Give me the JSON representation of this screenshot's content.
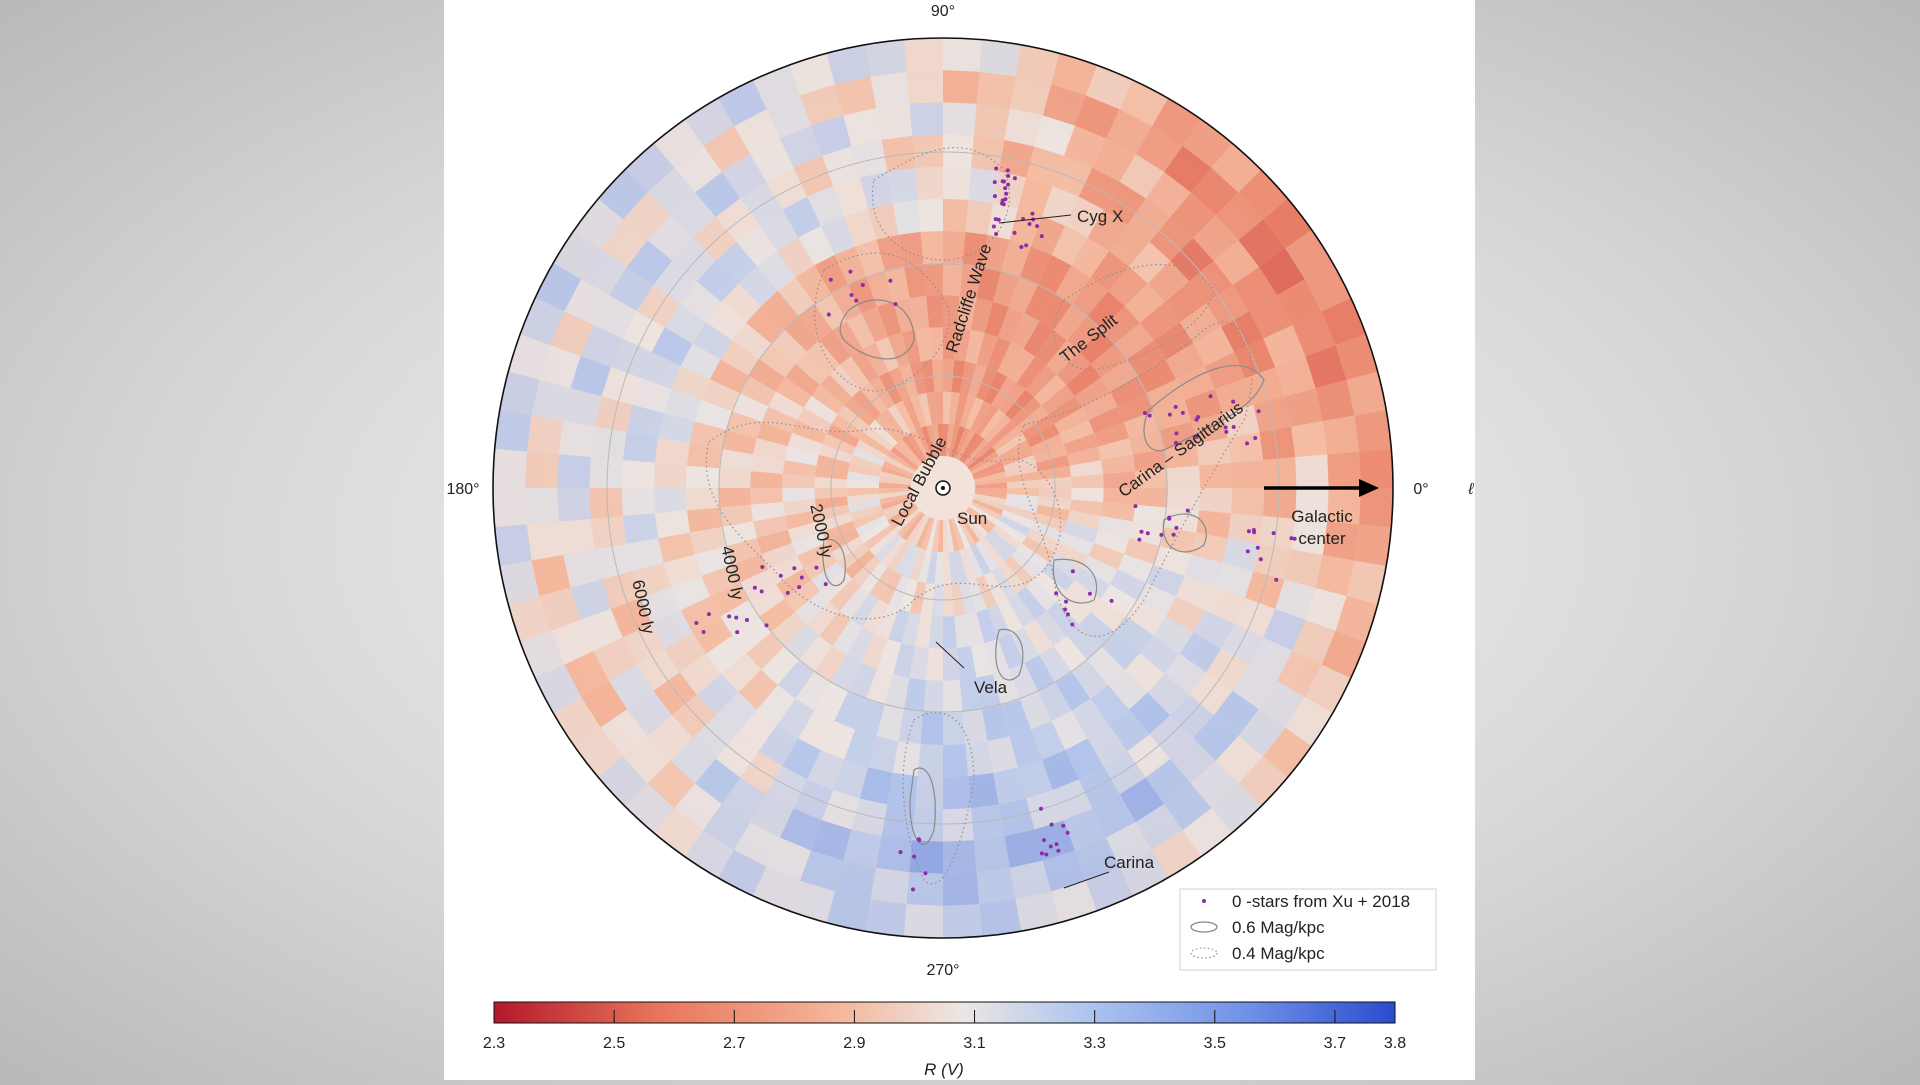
{
  "chart_data": {
    "type": "heatmap",
    "projection": "polar",
    "colormap": {
      "name": "coolwarm",
      "min_color": "#b2182b",
      "mid_color": "#f1e6df",
      "max_color": "#2b4bcf"
    },
    "angle_labels": [
      "90°",
      "180°",
      "0°",
      "270°"
    ],
    "axis_symbol": "ℓ",
    "radial_labels": [
      "2000 ly",
      "4000 ly",
      "6000 ly"
    ],
    "center_marker": "⊙",
    "regions": [
      {
        "label": "Cyg X"
      },
      {
        "label": "Radcliffe Wave"
      },
      {
        "label": "The Split"
      },
      {
        "label": "Carina – Sagittarius"
      },
      {
        "label": "Local Bubble"
      },
      {
        "label": "Sun"
      },
      {
        "label": "Galactic"
      },
      {
        "label": "center"
      },
      {
        "label": "Vela"
      },
      {
        "label": "Carina"
      }
    ],
    "legend": [
      {
        "label": "0 -stars from Xu + 2018",
        "marker": "dot",
        "color": "#8a2fa8"
      },
      {
        "label": "0.6 Mag/kpc",
        "marker": "solid-contour",
        "color": "#888888"
      },
      {
        "label": "0.4 Mag/kpc",
        "marker": "dotted-contour",
        "color": "#999999"
      }
    ],
    "colorbar": {
      "min": 2.3,
      "max": 3.8,
      "ticks": [
        "2.3",
        "2.5",
        "2.7",
        "2.9",
        "3.1",
        "3.3",
        "3.5",
        "3.7",
        "3.8"
      ],
      "label": "R (V)"
    }
  }
}
